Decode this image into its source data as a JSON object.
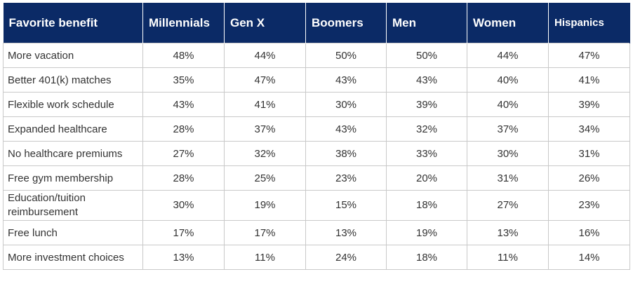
{
  "chart_data": {
    "type": "table",
    "columns": [
      "Favorite benefit",
      "Millennials",
      "Gen X",
      "Boomers",
      "Men",
      "Women",
      "Hispanics"
    ],
    "rows": [
      [
        "More vacation",
        "48%",
        "44%",
        "50%",
        "50%",
        "44%",
        "47%"
      ],
      [
        "Better 401(k) matches",
        "35%",
        "47%",
        "43%",
        "43%",
        "40%",
        "41%"
      ],
      [
        "Flexible work schedule",
        "43%",
        "41%",
        "30%",
        "39%",
        "40%",
        "39%"
      ],
      [
        "Expanded healthcare",
        "28%",
        "37%",
        "43%",
        "32%",
        "37%",
        "34%"
      ],
      [
        "No healthcare premiums",
        "27%",
        "32%",
        "38%",
        "33%",
        "30%",
        "31%"
      ],
      [
        "Free gym membership",
        "28%",
        "25%",
        "23%",
        "20%",
        "31%",
        "26%"
      ],
      [
        "Education/tuition reimbursement",
        "30%",
        "19%",
        "15%",
        "18%",
        "27%",
        "23%"
      ],
      [
        "Free lunch",
        "17%",
        "17%",
        "13%",
        "19%",
        "13%",
        "16%"
      ],
      [
        "More investment choices",
        "13%",
        "11%",
        "24%",
        "18%",
        "11%",
        "14%"
      ]
    ]
  },
  "colors": {
    "header_bg": "#0b2a66",
    "header_text": "#ffffff",
    "border": "#c9c9c9"
  }
}
